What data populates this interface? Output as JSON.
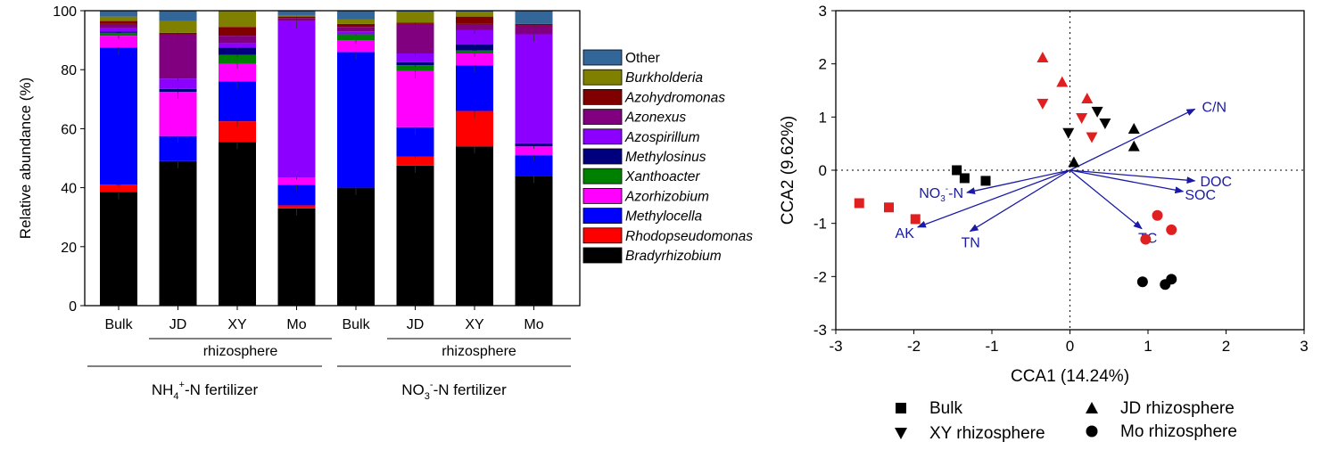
{
  "chart_data": [
    {
      "type": "bar",
      "stacked": true,
      "ylabel": "Relative abundance (%)",
      "ylim": [
        0,
        100
      ],
      "yticks": [
        0,
        20,
        40,
        60,
        80,
        100
      ],
      "categories": [
        "Bulk",
        "JD",
        "XY",
        "Mo",
        "Bulk",
        "JD",
        "XY",
        "Mo"
      ],
      "subgroup_label": "rhizosphere",
      "groups": [
        {
          "label_base": "NH",
          "label_sub": "4",
          "label_sup": "+",
          "label_rest": "-N fertilizer"
        },
        {
          "label_base": "NO",
          "label_sub": "3",
          "label_sup": "-",
          "label_rest": "-N fertilizer"
        }
      ],
      "series": [
        {
          "name": "Bradyrhizobium",
          "color": "#000000",
          "values": [
            38.5,
            49,
            55.5,
            33,
            40,
            47.5,
            54,
            44
          ]
        },
        {
          "name": "Rhodopseudomonas",
          "color": "#ff0000",
          "values": [
            2.5,
            0,
            7,
            1,
            0,
            3,
            12,
            0
          ]
        },
        {
          "name": "Methylocella",
          "color": "#0000ff",
          "values": [
            46.5,
            8.5,
            13.5,
            7,
            46,
            10,
            15.5,
            7
          ]
        },
        {
          "name": "Azorhizobium",
          "color": "#ff00ff",
          "values": [
            4,
            15,
            6,
            2.5,
            4,
            19,
            4,
            3
          ]
        },
        {
          "name": "Xanthoacter",
          "color": "#008000",
          "values": [
            1,
            0,
            3,
            0,
            2,
            2,
            1,
            0
          ]
        },
        {
          "name": "Methylosinus",
          "color": "#00007f",
          "values": [
            0.5,
            1,
            2.5,
            0,
            0,
            1,
            2,
            1
          ]
        },
        {
          "name": "Azospirillum",
          "color": "#8b00ff",
          "values": [
            1,
            3.5,
            1.5,
            53,
            1,
            3,
            5,
            37
          ]
        },
        {
          "name": "Azonexus",
          "color": "#800080",
          "values": [
            1.5,
            15,
            2.5,
            1,
            1.5,
            10,
            2,
            3
          ]
        },
        {
          "name": "Azohydromonas",
          "color": "#800000",
          "values": [
            1,
            0.5,
            3,
            0.5,
            1,
            0.5,
            2.5,
            0.5
          ]
        },
        {
          "name": "Burkholderia",
          "color": "#808000",
          "values": [
            1.5,
            4,
            5.5,
            0.5,
            1.5,
            3.5,
            1.5,
            0
          ]
        },
        {
          "name": "Other",
          "color": "#336699",
          "values": [
            2,
            3.5,
            0,
            1.5,
            3,
            0.5,
            0.5,
            4.5
          ]
        }
      ]
    },
    {
      "type": "scatter",
      "xlabel": "CCA1 (14.24%)",
      "ylabel": "CCA2 (9.62%)",
      "xlim": [
        -3,
        3
      ],
      "ylim": [
        -3,
        3
      ],
      "xticks": [
        -3,
        -2,
        -1,
        0,
        1,
        2,
        3
      ],
      "yticks": [
        -3,
        -2,
        -1,
        0,
        1,
        2,
        3
      ],
      "marker_colors": {
        "nh4": "#000000",
        "no3": "#e02020"
      },
      "arrow_color": "#1a1aa6",
      "series": [
        {
          "name": "Bulk",
          "marker": "square",
          "points": [
            {
              "x": -1.45,
              "y": 0.0,
              "group": "nh4"
            },
            {
              "x": -1.35,
              "y": -0.15,
              "group": "nh4"
            },
            {
              "x": -1.08,
              "y": -0.2,
              "group": "nh4"
            },
            {
              "x": -2.7,
              "y": -0.62,
              "group": "no3"
            },
            {
              "x": -2.32,
              "y": -0.7,
              "group": "no3"
            },
            {
              "x": -1.98,
              "y": -0.92,
              "group": "no3"
            }
          ]
        },
        {
          "name": "JD rhizosphere",
          "marker": "triangle-up",
          "points": [
            {
              "x": 0.05,
              "y": 0.15,
              "group": "nh4"
            },
            {
              "x": 0.82,
              "y": 0.78,
              "group": "nh4"
            },
            {
              "x": 0.82,
              "y": 0.45,
              "group": "nh4"
            },
            {
              "x": -0.35,
              "y": 2.12,
              "group": "no3"
            },
            {
              "x": -0.1,
              "y": 1.66,
              "group": "no3"
            },
            {
              "x": 0.22,
              "y": 1.35,
              "group": "no3"
            }
          ]
        },
        {
          "name": "XY rhizosphere",
          "marker": "triangle-down",
          "points": [
            {
              "x": -0.02,
              "y": 0.7,
              "group": "nh4"
            },
            {
              "x": 0.35,
              "y": 1.1,
              "group": "nh4"
            },
            {
              "x": 0.45,
              "y": 0.88,
              "group": "nh4"
            },
            {
              "x": -0.35,
              "y": 1.25,
              "group": "no3"
            },
            {
              "x": 0.15,
              "y": 0.98,
              "group": "no3"
            },
            {
              "x": 0.28,
              "y": 0.62,
              "group": "no3"
            }
          ]
        },
        {
          "name": "Mo rhizosphere",
          "marker": "circle",
          "points": [
            {
              "x": 0.93,
              "y": -2.1,
              "group": "nh4"
            },
            {
              "x": 1.22,
              "y": -2.15,
              "group": "nh4"
            },
            {
              "x": 1.3,
              "y": -2.05,
              "group": "nh4"
            },
            {
              "x": 1.12,
              "y": -0.85,
              "group": "no3"
            },
            {
              "x": 1.3,
              "y": -1.12,
              "group": "no3"
            },
            {
              "x": 0.97,
              "y": -1.3,
              "group": "no3"
            }
          ]
        }
      ],
      "arrows": [
        {
          "label": "C/N",
          "x": 1.6,
          "y": 1.15
        },
        {
          "label": "DOC",
          "x": 1.6,
          "y": -0.2
        },
        {
          "label": "SOC",
          "x": 1.45,
          "y": -0.4
        },
        {
          "label": "TC",
          "x": 0.92,
          "y": -1.1
        },
        {
          "label": "NO3--N",
          "label_base": "NO",
          "label_sub": "3",
          "label_sup": "-",
          "label_rest": "-N",
          "x": -1.32,
          "y": -0.42
        },
        {
          "label": "AK",
          "x": -1.95,
          "y": -1.07
        },
        {
          "label": "TN",
          "x": -1.28,
          "y": -1.15
        }
      ]
    }
  ]
}
